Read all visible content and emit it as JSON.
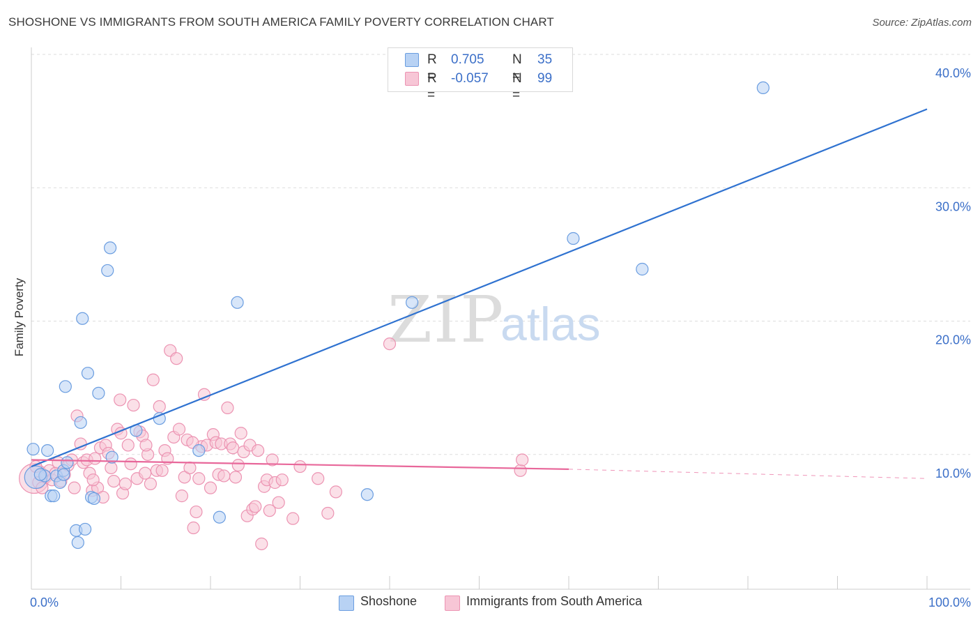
{
  "title": "SHOSHONE VS IMMIGRANTS FROM SOUTH AMERICA FAMILY POVERTY CORRELATION CHART",
  "source": "Source: ZipAtlas.com",
  "watermark": {
    "zip": "ZIP",
    "atlas": "atlas"
  },
  "colors": {
    "blue_fill": "#b8d2f4",
    "blue_stroke": "#6a9de0",
    "blue_line": "#2f72d0",
    "pink_fill": "#f7c6d6",
    "pink_stroke": "#ec93b2",
    "pink_line": "#e8679a",
    "axis_text": "#3b6fc8",
    "grid": "#dddddd"
  },
  "legend": {
    "rows": [
      {
        "label": "R =",
        "r": " 0.705",
        "n_label": "N =",
        "n": "35"
      },
      {
        "label": "R =",
        "r": "-0.057",
        "n_label": "N =",
        "n": "99"
      }
    ]
  },
  "bottom_legend": [
    "Shoshone",
    "Immigrants from South America"
  ],
  "chart_data": {
    "type": "scatter",
    "title": "SHOSHONE VS IMMIGRANTS FROM SOUTH AMERICA FAMILY POVERTY CORRELATION CHART",
    "xlabel": "",
    "ylabel": "Family Poverty",
    "xlim": [
      0,
      100
    ],
    "ylim": [
      0,
      40
    ],
    "x_tick_labels": [
      "0.0%",
      "100.0%"
    ],
    "y_ticks": [
      10,
      20,
      30,
      40
    ],
    "y_tick_labels": [
      "10.0%",
      "20.0%",
      "30.0%",
      "40.0%"
    ],
    "series": [
      {
        "name": "Shoshone",
        "r": 0.705,
        "n": 35,
        "trend": {
          "x": [
            0,
            100
          ],
          "y": [
            9.2,
            36.0
          ],
          "style": "solid"
        },
        "points": [
          [
            0.5,
            8.4
          ],
          [
            1.5,
            8.5
          ],
          [
            1.8,
            10.4
          ],
          [
            2.2,
            7.0
          ],
          [
            2.5,
            7.0
          ],
          [
            2.8,
            8.5
          ],
          [
            3.2,
            8.0
          ],
          [
            3.6,
            8.9
          ],
          [
            3.6,
            8.6
          ],
          [
            4.0,
            9.5
          ],
          [
            3.8,
            15.2
          ],
          [
            5.2,
            3.5
          ],
          [
            5.0,
            4.4
          ],
          [
            5.5,
            12.5
          ],
          [
            6.0,
            4.5
          ],
          [
            5.7,
            20.3
          ],
          [
            6.3,
            16.2
          ],
          [
            6.7,
            6.9
          ],
          [
            7.0,
            6.8
          ],
          [
            7.5,
            14.7
          ],
          [
            8.5,
            23.9
          ],
          [
            8.8,
            25.6
          ],
          [
            9.0,
            9.9
          ],
          [
            11.7,
            11.9
          ],
          [
            14.3,
            12.8
          ],
          [
            18.7,
            10.4
          ],
          [
            21.0,
            5.4
          ],
          [
            23.0,
            21.5
          ],
          [
            37.5,
            7.1
          ],
          [
            42.5,
            21.5
          ],
          [
            60.5,
            26.3
          ],
          [
            68.2,
            24.0
          ],
          [
            81.7,
            37.6
          ],
          [
            0.2,
            10.5
          ],
          [
            1.0,
            8.6
          ]
        ],
        "size_scale": [
          1.9,
          1,
          1,
          1,
          1,
          1,
          1,
          1,
          1,
          1,
          1,
          1,
          1,
          1,
          1,
          1,
          1,
          1,
          1,
          1,
          1,
          1,
          1,
          1,
          1,
          1,
          1,
          1,
          1,
          1,
          1,
          1,
          1,
          1,
          1
        ]
      },
      {
        "name": "Immigrants from South America",
        "r": -0.057,
        "n": 99,
        "trend": {
          "x": [
            0,
            60
          ],
          "y": [
            9.7,
            9.0
          ],
          "dash_x": [
            60,
            100
          ],
          "dash_y": [
            9.0,
            8.3
          ]
        },
        "points": [
          [
            0.3,
            8.3
          ],
          [
            0.8,
            8.0
          ],
          [
            1.2,
            7.6
          ],
          [
            1.6,
            8.4
          ],
          [
            2.0,
            8.9
          ],
          [
            2.3,
            8.2
          ],
          [
            2.7,
            8.7
          ],
          [
            3.0,
            9.5
          ],
          [
            3.3,
            8.1
          ],
          [
            3.7,
            8.6
          ],
          [
            4.1,
            9.3
          ],
          [
            4.5,
            9.7
          ],
          [
            4.8,
            7.6
          ],
          [
            5.1,
            13.0
          ],
          [
            5.5,
            10.9
          ],
          [
            5.8,
            9.5
          ],
          [
            6.2,
            9.7
          ],
          [
            6.5,
            8.7
          ],
          [
            6.8,
            7.4
          ],
          [
            7.1,
            9.8
          ],
          [
            7.4,
            7.6
          ],
          [
            7.7,
            10.6
          ],
          [
            8.0,
            6.9
          ],
          [
            8.3,
            10.8
          ],
          [
            8.6,
            10.2
          ],
          [
            8.9,
            9.1
          ],
          [
            9.2,
            8.1
          ],
          [
            9.6,
            12.0
          ],
          [
            9.9,
            14.2
          ],
          [
            10.2,
            7.2
          ],
          [
            10.5,
            7.9
          ],
          [
            10.8,
            10.8
          ],
          [
            11.1,
            9.4
          ],
          [
            11.4,
            13.8
          ],
          [
            11.8,
            8.3
          ],
          [
            12.1,
            11.8
          ],
          [
            12.4,
            11.5
          ],
          [
            12.7,
            8.7
          ],
          [
            13.0,
            10.1
          ],
          [
            13.3,
            7.9
          ],
          [
            13.6,
            15.7
          ],
          [
            14.0,
            8.9
          ],
          [
            14.3,
            13.7
          ],
          [
            14.6,
            8.9
          ],
          [
            14.9,
            10.4
          ],
          [
            15.2,
            9.8
          ],
          [
            15.5,
            17.9
          ],
          [
            15.9,
            11.4
          ],
          [
            16.2,
            17.3
          ],
          [
            16.5,
            12.0
          ],
          [
            16.8,
            7.0
          ],
          [
            17.1,
            8.4
          ],
          [
            17.4,
            11.2
          ],
          [
            17.7,
            9.1
          ],
          [
            18.1,
            4.6
          ],
          [
            18.4,
            5.8
          ],
          [
            18.7,
            8.3
          ],
          [
            19.0,
            10.7
          ],
          [
            19.3,
            14.6
          ],
          [
            19.6,
            10.8
          ],
          [
            20.0,
            7.6
          ],
          [
            20.3,
            11.6
          ],
          [
            20.6,
            11.0
          ],
          [
            20.9,
            8.6
          ],
          [
            21.2,
            10.9
          ],
          [
            21.5,
            8.5
          ],
          [
            21.9,
            13.6
          ],
          [
            22.2,
            10.9
          ],
          [
            22.5,
            10.6
          ],
          [
            22.8,
            8.4
          ],
          [
            23.1,
            9.3
          ],
          [
            23.4,
            11.7
          ],
          [
            23.7,
            10.3
          ],
          [
            24.1,
            5.5
          ],
          [
            24.4,
            10.8
          ],
          [
            24.7,
            6.0
          ],
          [
            25.0,
            6.2
          ],
          [
            25.3,
            10.4
          ],
          [
            25.7,
            3.4
          ],
          [
            26.0,
            7.7
          ],
          [
            26.3,
            8.2
          ],
          [
            26.6,
            5.9
          ],
          [
            26.9,
            9.7
          ],
          [
            27.2,
            8.0
          ],
          [
            27.6,
            6.5
          ],
          [
            28.0,
            8.2
          ],
          [
            29.2,
            5.3
          ],
          [
            30.0,
            9.2
          ],
          [
            32.0,
            8.3
          ],
          [
            33.1,
            5.7
          ],
          [
            34.0,
            7.3
          ],
          [
            40.0,
            18.4
          ],
          [
            54.6,
            8.9
          ],
          [
            54.8,
            9.7
          ],
          [
            6.9,
            8.2
          ],
          [
            0.5,
            9.2
          ],
          [
            10.0,
            11.7
          ],
          [
            12.8,
            10.8
          ],
          [
            18.0,
            11.0
          ]
        ],
        "size_scale": [
          2.5,
          1,
          1,
          1,
          1,
          1,
          1,
          1,
          1,
          1,
          1,
          1,
          1,
          1,
          1,
          1,
          1,
          1,
          1,
          1,
          1,
          1,
          1,
          1,
          1,
          1,
          1,
          1,
          1,
          1,
          1,
          1,
          1,
          1,
          1,
          1,
          1,
          1,
          1,
          1,
          1,
          1,
          1,
          1,
          1,
          1,
          1,
          1,
          1,
          1,
          1,
          1,
          1,
          1,
          1,
          1,
          1,
          1,
          1,
          1,
          1,
          1,
          1,
          1,
          1,
          1,
          1,
          1,
          1,
          1,
          1,
          1,
          1,
          1,
          1,
          1,
          1,
          1,
          1,
          1,
          1,
          1,
          1,
          1,
          1,
          1,
          1,
          1,
          1,
          1,
          1,
          1,
          1,
          1,
          1,
          1,
          1,
          1,
          1
        ]
      }
    ]
  }
}
